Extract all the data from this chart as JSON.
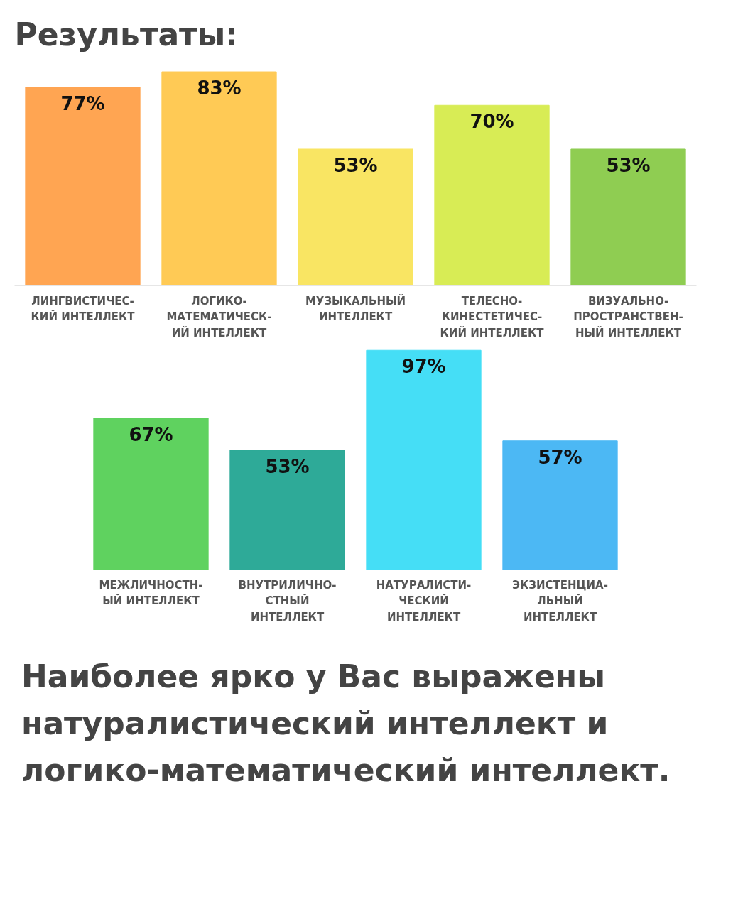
{
  "chart_data": [
    {
      "type": "bar",
      "title": "Результаты:",
      "categories": [
        "ЛИНГВИСТИЧЕС-\nКИЙ ИНТЕЛЛЕКТ",
        "ЛОГИКО-\nМАТЕМАТИЧЕСК-\nИЙ ИНТЕЛЛЕКТ",
        "МУЗЫКАЛЬНЫЙ\nИНТЕЛЛЕКТ",
        "ТЕЛЕСНО-\nКИНЕСТЕТИЧЕС-\nКИЙ ИНТЕЛЛЕКТ",
        "ВИЗУАЛЬНО-\nПРОСТРАНСТВЕН-\nНЫЙ ИНТЕЛЛЕКТ"
      ],
      "values": [
        77,
        83,
        53,
        70,
        53
      ],
      "value_labels": [
        "77%",
        "83%",
        "53%",
        "70%",
        "53%"
      ],
      "colors": [
        "#ffa552",
        "#ffca55",
        "#f9e563",
        "#d8ec55",
        "#8fcd52"
      ],
      "tick_labels": "x"
    },
    {
      "type": "bar",
      "categories": [
        "МЕЖЛИЧНОСТН-\nЫЙ ИНТЕЛЛЕКТ",
        "ВНУТРИЛИЧНО-\nСТНЫЙ\nИНТЕЛЛЕКТ",
        "НАТУРАЛИСТИ-\nЧЕСКИЙ\nИНТЕЛЛЕКТ",
        "ЭКЗИСТЕНЦИА-\nЛЬНЫЙ\nИНТЕЛЛЕКТ"
      ],
      "values": [
        67,
        53,
        97,
        57
      ],
      "value_labels": [
        "67%",
        "53%",
        "97%",
        "57%"
      ],
      "colors": [
        "#5fd25f",
        "#2eaa98",
        "#45def6",
        "#4cb8f4"
      ],
      "tick_labels": "x",
      "annotations": [
        "Наиболее ярко у Вас выражены натуралистический интеллект и логико-математический интеллект."
      ]
    }
  ]
}
